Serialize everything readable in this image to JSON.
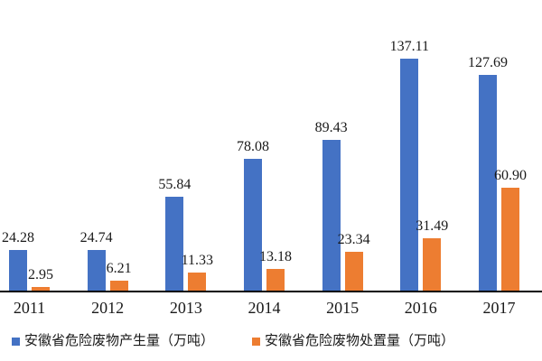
{
  "chart_data": {
    "type": "bar",
    "title": "",
    "xlabel": "",
    "ylabel": "",
    "categories": [
      "2011",
      "2012",
      "2013",
      "2014",
      "2015",
      "2016",
      "2017"
    ],
    "series": [
      {
        "name": "安徽省危险废物产生量（万吨）",
        "color": "#4472C4",
        "values": [
          24.28,
          24.74,
          55.84,
          78.08,
          89.43,
          137.11,
          127.69
        ],
        "labels": [
          "24.28",
          "24.74",
          "55.84",
          "78.08",
          "89.43",
          "137.11",
          "127.69"
        ]
      },
      {
        "name": "安徽省危险废物处置量（万吨）",
        "color": "#ED7D31",
        "values": [
          2.95,
          6.21,
          11.33,
          13.18,
          23.34,
          31.49,
          60.9
        ],
        "labels": [
          "2.95",
          "6.21",
          "11.33",
          "13.18",
          "23.34",
          "31.49",
          "60.90"
        ]
      }
    ],
    "ylim": [
      0,
      160
    ],
    "grid": false,
    "axis_line_color": "#000000",
    "text_color": "#1a1a1a",
    "legend_position": "bottom",
    "value_labels_shown": true
  }
}
